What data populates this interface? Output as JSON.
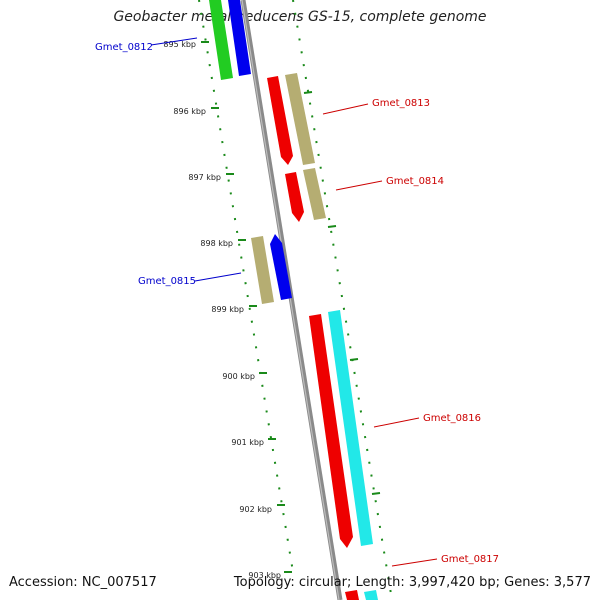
{
  "title": "Geobacter metallireducens GS-15, complete genome",
  "footer": {
    "accession": "Accession: NC_007517",
    "topology": "Topology: circular; Length: 3,997,420 bp; Genes: 3,577"
  },
  "scale": {
    "ticks": [
      "895 kbp",
      "896 kbp",
      "897 kbp",
      "898 kbp",
      "899 kbp",
      "900 kbp",
      "901 kbp",
      "902 kbp",
      "903 kbp"
    ]
  },
  "genes": [
    {
      "name": "Gmet_0812",
      "strand": "reverse",
      "label_color": "#0000cc",
      "colors": [
        "#22cc22",
        "#0000ee"
      ]
    },
    {
      "name": "Gmet_0813",
      "strand": "forward",
      "label_color": "#cc0000",
      "colors": [
        "#ee0000",
        "#b5ad72"
      ]
    },
    {
      "name": "Gmet_0814",
      "strand": "forward",
      "label_color": "#cc0000",
      "colors": [
        "#ee0000",
        "#b5ad72"
      ]
    },
    {
      "name": "Gmet_0815",
      "strand": "reverse",
      "label_color": "#0000cc",
      "colors": [
        "#b5ad72",
        "#0000ee"
      ]
    },
    {
      "name": "Gmet_0816",
      "strand": "forward",
      "label_color": "#cc0000",
      "colors": [
        "#ee0000",
        "#22e8e8"
      ]
    },
    {
      "name": "Gmet_0817",
      "strand": "forward",
      "label_color": "#cc0000",
      "colors": [
        "#ee0000",
        "#22e8e8"
      ]
    }
  ],
  "colors": {
    "backbone": "#8a8a8a",
    "tick": "#1a8a1a"
  }
}
